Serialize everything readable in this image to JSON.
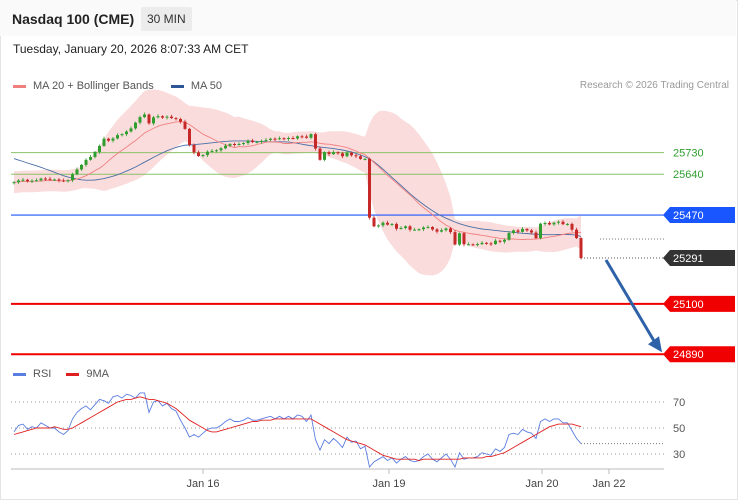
{
  "header": {
    "title": "Nasdaq 100 (CME)",
    "timeframe": "30 MIN",
    "timestamp": "Tuesday, January 20, 2026 8:07:33 AM CET"
  },
  "legend": {
    "ma20": "MA 20 + Bollinger Bands",
    "ma50": "MA 50",
    "credit": "Research © 2026 Trading Central"
  },
  "colors": {
    "up": "#2f9e2f",
    "down": "#c62828",
    "band": "#fadcdc",
    "ma20": "#f08080",
    "ma50": "#4a6fa5",
    "pivot": "#1a56ff",
    "target": "#f00000",
    "last": "#333333",
    "arrow": "#2e62a8",
    "resistance_green": "#8cc06a",
    "rsi": "#5a7de0",
    "rsi_ma": "#e02020"
  },
  "rsi_legend": {
    "rsi": "RSI",
    "ma": "9MA"
  },
  "chart_data": [
    {
      "type": "candlestick",
      "title": "Nasdaq 100 (CME)",
      "y_range": [
        24850,
        25900
      ],
      "x_labels": [
        "Jan 16",
        "Jan 19",
        "Jan 20",
        "Jan 22"
      ],
      "levels": [
        {
          "value": 25730,
          "label": "25730",
          "kind": "resistance"
        },
        {
          "value": 25640,
          "label": "25640",
          "kind": "resistance"
        },
        {
          "value": 25470,
          "label": "25470",
          "kind": "pivot"
        },
        {
          "value": 25291,
          "label": "25291",
          "kind": "last"
        },
        {
          "value": 25100,
          "label": "25100",
          "kind": "target"
        },
        {
          "value": 24890,
          "label": "24890",
          "kind": "target"
        }
      ],
      "projection": {
        "from": 25291,
        "to": 24890
      },
      "close": [
        25607,
        25614,
        25617,
        25611,
        25613,
        25615,
        25622,
        25621,
        25618,
        25618,
        25614,
        25611,
        25615,
        25640,
        25660,
        25679,
        25700,
        25712,
        25733,
        25758,
        25788,
        25780,
        25789,
        25803,
        25807,
        25818,
        25831,
        25855,
        25878,
        25889,
        25852,
        25877,
        25882,
        25876,
        25880,
        25874,
        25870,
        25859,
        25829,
        25762,
        25731,
        25716,
        25720,
        25734,
        25737,
        25740,
        25748,
        25759,
        25766,
        25763,
        25766,
        25770,
        25780,
        25774,
        25775,
        25779,
        25783,
        25788,
        25786,
        25790,
        25787,
        25791,
        25789,
        25798,
        25797,
        25792,
        25807,
        25747,
        25700,
        25732,
        25724,
        25732,
        25727,
        25715,
        25730,
        25719,
        25715,
        25704,
        25704,
        25459,
        25423,
        25427,
        25438,
        25430,
        25433,
        25413,
        25416,
        25423,
        25409,
        25409,
        25411,
        25418,
        25420,
        25410,
        25401,
        25407,
        25414,
        25399,
        25347,
        25394,
        25348,
        25348,
        25347,
        25349,
        25354,
        25352,
        25349,
        25363,
        25359,
        25367,
        25395,
        25406,
        25400,
        25412,
        25406,
        25397,
        25374,
        25434,
        25437,
        25431,
        25438,
        25442,
        25432,
        25433,
        25409,
        25374,
        25291
      ],
      "ma20": [
        25607,
        25608,
        25610,
        25610,
        25610,
        25611,
        25612,
        25613,
        25614,
        25614,
        25613,
        25612,
        25613,
        25616,
        25620,
        25626,
        25634,
        25644,
        25655,
        25665,
        25679,
        25696,
        25712,
        25727,
        25740,
        25753,
        25767,
        25780,
        25796,
        25812,
        25822,
        25831,
        25840,
        25846,
        25850,
        25854,
        25858,
        25859,
        25857,
        25847,
        25834,
        25820,
        25807,
        25798,
        25789,
        25779,
        25770,
        25763,
        25757,
        25751,
        25755,
        25754,
        25756,
        25759,
        25764,
        25769,
        25773,
        25775,
        25774,
        25773,
        25768,
        25768,
        25770,
        25772,
        25773,
        25773,
        25775,
        25773,
        25769,
        25766,
        25765,
        25762,
        25759,
        25755,
        25751,
        25744,
        25737,
        25728,
        25722,
        25706,
        25689,
        25672,
        25654,
        25635,
        25620,
        25603,
        25586,
        25570,
        25553,
        25536,
        25517,
        25501,
        25487,
        25472,
        25456,
        25441,
        25428,
        25418,
        25407,
        25401,
        25398,
        25394,
        25391,
        25389,
        25385,
        25383,
        25379,
        25376,
        25373,
        25371,
        25370,
        25370,
        25369,
        25368,
        25369,
        25369,
        25370,
        25372,
        25375,
        25379,
        25381,
        25385,
        25389,
        25393,
        25395,
        25397,
        25397
      ],
      "ma50": [
        25705,
        25699,
        25693,
        25687,
        25681,
        25675,
        25669,
        25662,
        25655,
        25648,
        25641,
        25634,
        25628,
        25624,
        25620,
        25617,
        25615,
        25615,
        25616,
        25619,
        25622,
        25627,
        25632,
        25638,
        25645,
        25653,
        25661,
        25670,
        25680,
        25690,
        25700,
        25710,
        25720,
        25729,
        25738,
        25745,
        25752,
        25757,
        25761,
        25762,
        25763,
        25765,
        25767,
        25769,
        25771,
        25773,
        25775,
        25777,
        25778,
        25779,
        25779,
        25779,
        25779,
        25778,
        25777,
        25776,
        25775,
        25775,
        25775,
        25775,
        25775,
        25774,
        25772,
        25769,
        25765,
        25762,
        25759,
        25756,
        25753,
        25751,
        25749,
        25747,
        25744,
        25741,
        25737,
        25733,
        25727,
        25720,
        25713,
        25704,
        25692,
        25677,
        25661,
        25644,
        25627,
        25610,
        25593,
        25576,
        25559,
        25543,
        25528,
        25514,
        25500,
        25488,
        25476,
        25466,
        25457,
        25449,
        25441,
        25434,
        25428,
        25423,
        25419,
        25415,
        25412,
        25410,
        25408,
        25406,
        25404,
        25402,
        25400,
        25398,
        25396,
        25394,
        25393,
        25391,
        25390,
        25389,
        25388,
        25388,
        25388,
        25389,
        25389,
        25389,
        25388,
        25386,
        25381
      ]
    },
    {
      "type": "line",
      "title": "RSI",
      "series": [
        {
          "name": "RSI"
        },
        {
          "name": "9MA"
        }
      ],
      "y_ticks": [
        70,
        50,
        30
      ],
      "y_range": [
        18,
        80
      ],
      "rsi": [
        47,
        52,
        53,
        49,
        51,
        50,
        54,
        52,
        50,
        50,
        47,
        45,
        48,
        57,
        62,
        65,
        67,
        64,
        68,
        72,
        71,
        69,
        74,
        75,
        73,
        76,
        75,
        73,
        77,
        77,
        62,
        70,
        71,
        67,
        69,
        65,
        63,
        56,
        50,
        43,
        45,
        43,
        46,
        49,
        50,
        50,
        52,
        55,
        57,
        55,
        55,
        56,
        58,
        56,
        56,
        57,
        58,
        59,
        57,
        59,
        57,
        59,
        57,
        60,
        59,
        55,
        60,
        41,
        33,
        41,
        38,
        42,
        39,
        35,
        43,
        39,
        40,
        34,
        36,
        20,
        24,
        26,
        28,
        25,
        27,
        23,
        26,
        28,
        25,
        24,
        25,
        28,
        30,
        26,
        24,
        27,
        30,
        26,
        20,
        31,
        26,
        27,
        27,
        28,
        31,
        30,
        29,
        34,
        32,
        35,
        45,
        46,
        45,
        49,
        47,
        46,
        42,
        55,
        57,
        55,
        57,
        57,
        54,
        54,
        48,
        42,
        38
      ],
      "ma": [
        45,
        46,
        47,
        48,
        49,
        50,
        50,
        50,
        50,
        51,
        50,
        49,
        49,
        50,
        52,
        54,
        56,
        58,
        60,
        62,
        64,
        66,
        68,
        70,
        71,
        72,
        72,
        73,
        74,
        73,
        72,
        72,
        71,
        70,
        69,
        67,
        65,
        62,
        59,
        56,
        54,
        52,
        50,
        48,
        47,
        47,
        48,
        49,
        50,
        51,
        52,
        53,
        54,
        55,
        55,
        56,
        56,
        56,
        57,
        57,
        57,
        57,
        57,
        57,
        57,
        57,
        57,
        55,
        53,
        51,
        49,
        47,
        45,
        43,
        41,
        40,
        39,
        38,
        37,
        35,
        33,
        31,
        29,
        28,
        27,
        26,
        26,
        26,
        26,
        26,
        25,
        26,
        26,
        26,
        26,
        26,
        26,
        26,
        26,
        26,
        27,
        27,
        27,
        27,
        27,
        28,
        28,
        29,
        30,
        31,
        33,
        35,
        37,
        39,
        41,
        43,
        45,
        47,
        49,
        51,
        52,
        53,
        53,
        53,
        53,
        52,
        51
      ]
    }
  ]
}
